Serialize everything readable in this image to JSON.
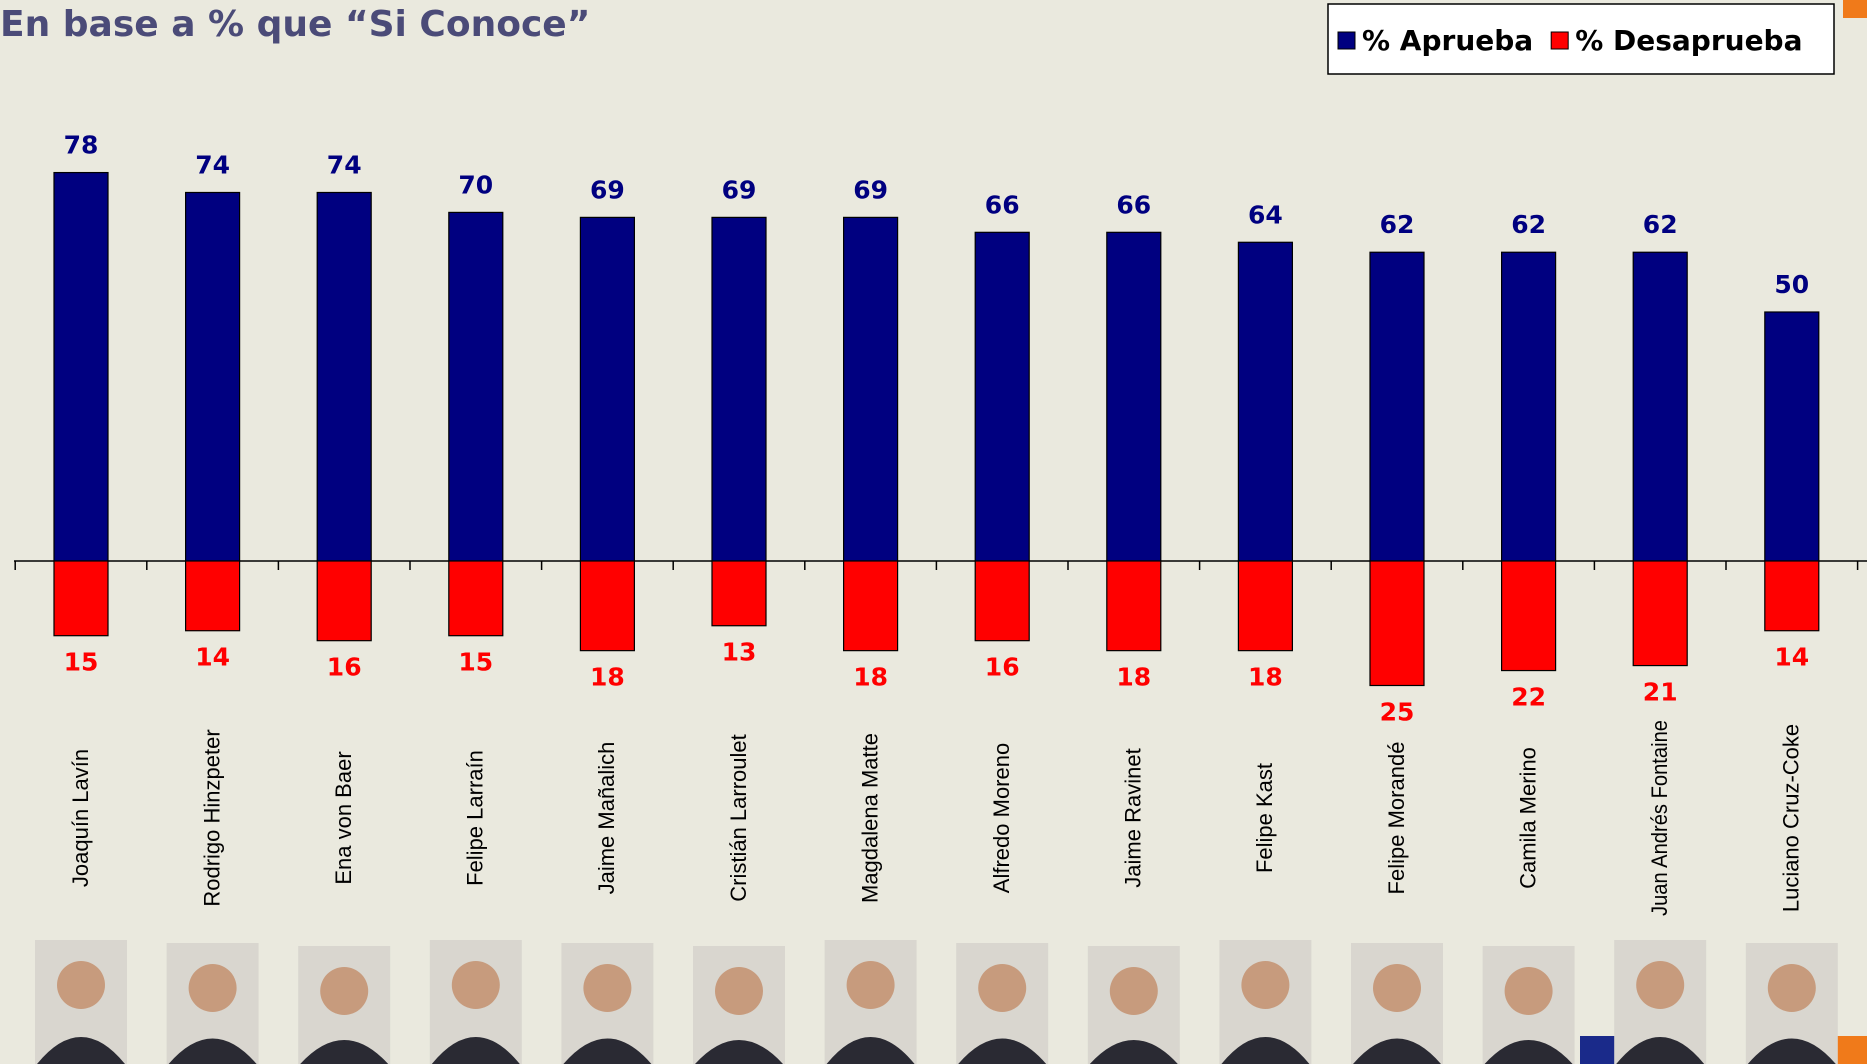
{
  "chart_data": {
    "type": "diverging-bar",
    "title": "En base a % que “Si Conoce”",
    "categories": [
      "Joaquín Lavín",
      "Rodrigo Hinzpeter",
      "Ena von Baer",
      "Felipe Larraín",
      "Jaime Mañalich",
      "Cristián Larroulet",
      "Magdalena Matte",
      "Alfredo Moreno",
      "Jaime Ravinet",
      "Felipe Kast",
      "Felipe Morandé",
      "Camila Merino",
      "Juan Andrés Fontaine",
      "Luciano Cruz-Coke"
    ],
    "series": [
      {
        "name": "% Aprueba",
        "color": "#000080",
        "label_color": "#000080",
        "direction": "up",
        "values": [
          78,
          74,
          74,
          70,
          69,
          69,
          69,
          66,
          66,
          64,
          62,
          62,
          62,
          50
        ]
      },
      {
        "name": "% Desaprueba",
        "color": "#ff0000",
        "label_color": "#ff0000",
        "direction": "down",
        "values": [
          15,
          14,
          16,
          15,
          18,
          13,
          18,
          16,
          18,
          18,
          25,
          22,
          21,
          14
        ]
      }
    ]
  }
}
